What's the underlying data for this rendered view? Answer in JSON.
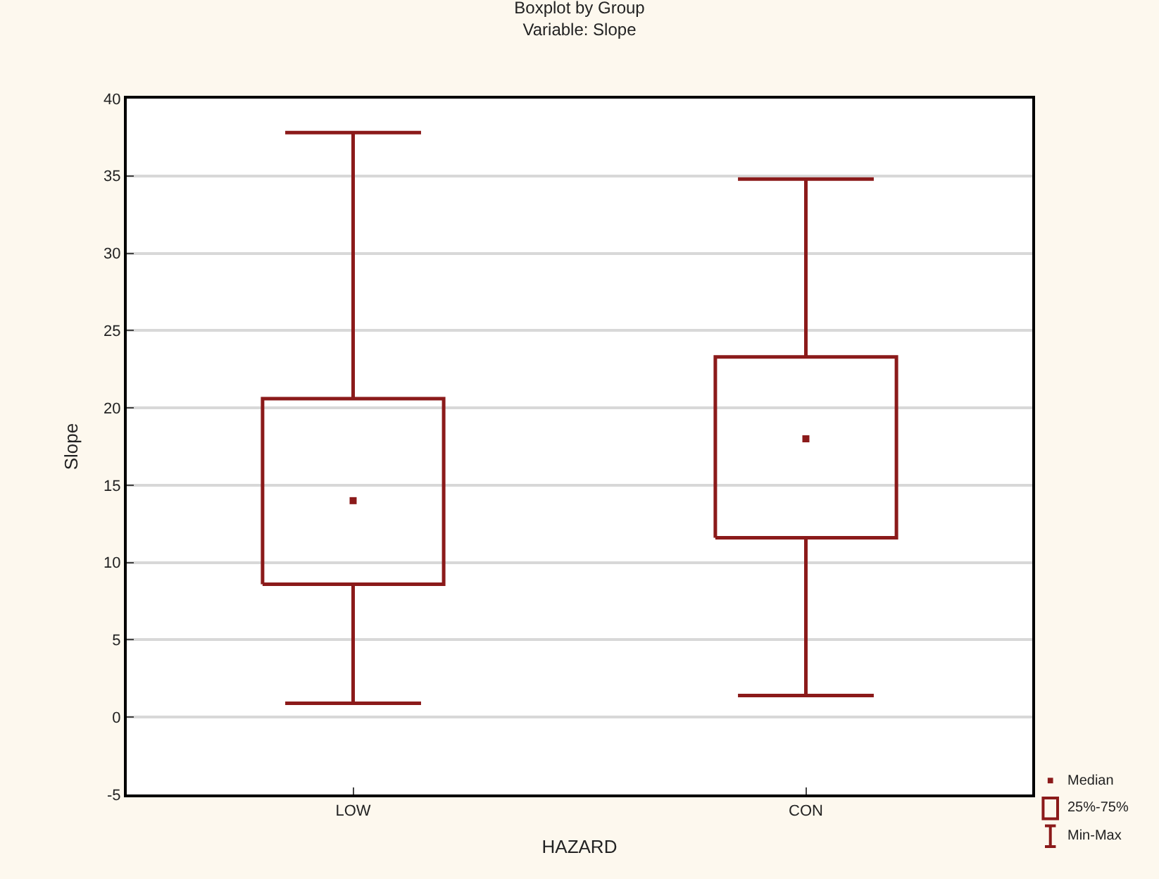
{
  "chart_data": {
    "type": "box",
    "title": "Boxplot by Group",
    "subtitle": "Variable: Slope",
    "xlabel": "HAZARD",
    "ylabel": "Slope",
    "categories": [
      "LOW",
      "CON"
    ],
    "boxes": [
      {
        "low": 0.9,
        "q1": 8.6,
        "median": 14.0,
        "q3": 20.6,
        "high": 37.8
      },
      {
        "low": 1.4,
        "q1": 11.6,
        "median": 18.0,
        "q3": 23.3,
        "high": 34.8
      }
    ],
    "color": "#8b1a1a",
    "ylim": [
      -5,
      40
    ],
    "yticks": [
      -5,
      0,
      5,
      10,
      15,
      20,
      25,
      30,
      35,
      40
    ],
    "grid": "y",
    "annotations": [
      "Median",
      "25%-75%",
      "Min-Max"
    ]
  }
}
